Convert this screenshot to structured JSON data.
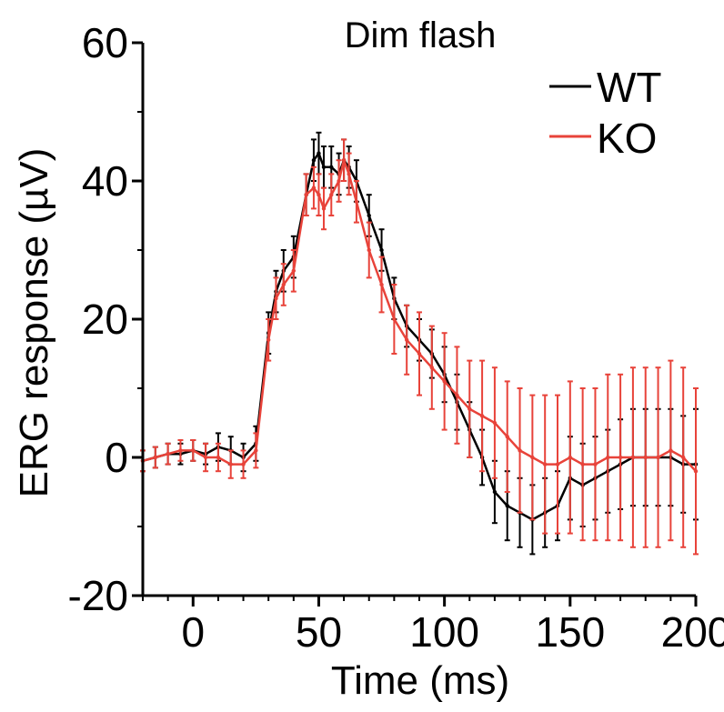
{
  "chart_data": {
    "type": "line",
    "title": "Dim flash",
    "xlabel": "Time (ms)",
    "ylabel": "ERG response (µV)",
    "xlim": [
      -20,
      200
    ],
    "ylim": [
      -20,
      60
    ],
    "xticks": [
      0,
      50,
      100,
      150,
      200
    ],
    "yticks": [
      -20,
      0,
      20,
      40,
      60
    ],
    "xtick_labels": [
      "0",
      "50",
      "100",
      "150",
      "200"
    ],
    "ytick_labels": [
      "-20",
      "0",
      "20",
      "40",
      "60"
    ],
    "grid": false,
    "legend_position": "top-right",
    "series": [
      {
        "name": "WT",
        "color": "#000000",
        "x": [
          -20,
          -15,
          -10,
          -5,
          0,
          5,
          10,
          15,
          20,
          25,
          30,
          33,
          36,
          40,
          45,
          48,
          50,
          52,
          55,
          58,
          60,
          62,
          65,
          70,
          75,
          80,
          85,
          90,
          95,
          100,
          105,
          110,
          115,
          120,
          125,
          130,
          135,
          140,
          145,
          150,
          155,
          160,
          165,
          170,
          175,
          180,
          185,
          190,
          195,
          200
        ],
        "y": [
          -0.5,
          0,
          0.5,
          0.5,
          1,
          0.5,
          1.5,
          1,
          0,
          2,
          18,
          24,
          27,
          29,
          38,
          43,
          44,
          42,
          42,
          41,
          43,
          42,
          40,
          35,
          30,
          23,
          19,
          17,
          15,
          12,
          8,
          4,
          0,
          -5,
          -7,
          -8,
          -9,
          -8,
          -7,
          -3,
          -4,
          -3,
          -2,
          -1,
          0,
          0,
          0,
          0,
          -1,
          -1
        ],
        "error": [
          1.5,
          1.5,
          1.5,
          1.5,
          1.5,
          1.5,
          2,
          2,
          2,
          2.5,
          3,
          3,
          3,
          3,
          3,
          3,
          3,
          3,
          3,
          3,
          3,
          3,
          3,
          3,
          3,
          3,
          3,
          3,
          3.5,
          4,
          4,
          4,
          4,
          4.5,
          5,
          5,
          5,
          5,
          5,
          6,
          6,
          6,
          6,
          6.5,
          7,
          7,
          7,
          7,
          7,
          8
        ]
      },
      {
        "name": "KO",
        "color": "#e8433a",
        "x": [
          -20,
          -15,
          -10,
          -5,
          0,
          5,
          10,
          15,
          20,
          25,
          30,
          33,
          36,
          40,
          45,
          48,
          50,
          52,
          55,
          58,
          60,
          62,
          65,
          70,
          75,
          80,
          85,
          90,
          95,
          100,
          105,
          110,
          115,
          120,
          125,
          130,
          135,
          140,
          145,
          150,
          155,
          160,
          165,
          170,
          175,
          180,
          185,
          190,
          195,
          200
        ],
        "y": [
          -0.5,
          0,
          0.5,
          1,
          1,
          0,
          0,
          -1,
          -1,
          1,
          17,
          23,
          25,
          27,
          38,
          39,
          38,
          36,
          38,
          40,
          43,
          41,
          37,
          30,
          25,
          20,
          17,
          15,
          13,
          11,
          9,
          7,
          6,
          5,
          3,
          1,
          0,
          -1,
          -1,
          0,
          -1,
          -1,
          0,
          0,
          0,
          0,
          0,
          1,
          0,
          -2
        ],
        "error": [
          1.5,
          1.5,
          1.5,
          1.5,
          1.5,
          2,
          2,
          2,
          2,
          2.5,
          3,
          3,
          3,
          3,
          3,
          3,
          3,
          3,
          3,
          3,
          3,
          3,
          3,
          4,
          4,
          5,
          5,
          6,
          6,
          7,
          7,
          7,
          8,
          8,
          8,
          9,
          9,
          10,
          10,
          11,
          11,
          11,
          12,
          12,
          13,
          13,
          13,
          13,
          13,
          12
        ]
      }
    ]
  }
}
